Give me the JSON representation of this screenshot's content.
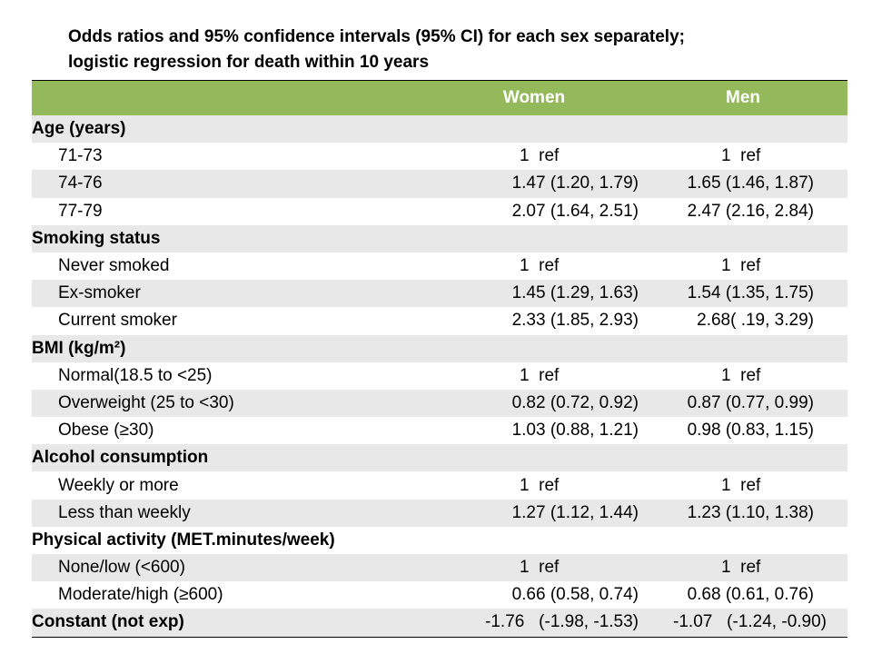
{
  "title_line1": "Odds ratios and 95% confidence intervals (95% CI) for each sex separately;",
  "title_line2": "logistic regression for death within 10 years",
  "headers": {
    "col0": "",
    "women": "Women",
    "men": "Men"
  },
  "rows": [
    {
      "label": "Age (years)",
      "type": "section",
      "women": "",
      "men": ""
    },
    {
      "label": "71-73",
      "type": "item",
      "women": "1  ref",
      "men": "1  ref",
      "ref": true
    },
    {
      "label": "74-76",
      "type": "item",
      "women": "1.47 (1.20, 1.79)",
      "men": "1.65 (1.46, 1.87)"
    },
    {
      "label": "77-79",
      "type": "item",
      "women": "2.07 (1.64, 2.51)",
      "men": "2.47 (2.16, 2.84)"
    },
    {
      "label": "Smoking status",
      "type": "section",
      "women": "",
      "men": ""
    },
    {
      "label": "Never smoked",
      "type": "item",
      "women": "1  ref",
      "men": "1  ref",
      "ref": true
    },
    {
      "label": "Ex-smoker",
      "type": "item",
      "women": "1.45 (1.29, 1.63)",
      "men": "1.54 (1.35, 1.75)"
    },
    {
      "label": "Current smoker",
      "type": "item",
      "women": "2.33 (1.85, 2.93)",
      "men": "2.68( .19, 3.29)"
    },
    {
      "label": "BMI  (kg/m²)",
      "type": "section",
      "women": "",
      "men": ""
    },
    {
      "label": "Normal(18.5 to <25)",
      "type": "item",
      "women": "1  ref",
      "men": "1  ref",
      "ref": true
    },
    {
      "label": "Overweight (25 to <30)",
      "type": "item",
      "women": "0.82 (0.72, 0.92)",
      "men": "0.87 (0.77, 0.99)"
    },
    {
      "label": "Obese (≥30)",
      "type": "item",
      "women": "1.03 (0.88, 1.21)",
      "men": "0.98 (0.83, 1.15)"
    },
    {
      "label": "Alcohol consumption",
      "type": "section",
      "women": "",
      "men": ""
    },
    {
      "label": "Weekly or more",
      "type": "item",
      "women": "1  ref",
      "men": "1  ref",
      "ref": true
    },
    {
      "label": "Less than weekly",
      "type": "item",
      "women": "1.27 (1.12, 1.44)",
      "men": "1.23 (1.10, 1.38)"
    },
    {
      "label": "Physical activity (MET.minutes/week)",
      "type": "section",
      "women": "",
      "men": ""
    },
    {
      "label": "None/low (<600)",
      "type": "item",
      "women": "1  ref",
      "men": "1  ref",
      "ref": true
    },
    {
      "label": "Moderate/high (≥600)",
      "type": "item",
      "women": "0.66 (0.58, 0.74)",
      "men": "0.68 (0.61, 0.76)"
    },
    {
      "label": "Constant (not exp)",
      "type": "last",
      "women": "-1.76   (-1.98, -1.53)",
      "men": "-1.07   (-1.24, -0.90)"
    }
  ],
  "colors": {
    "header_bg": "#93b95a",
    "stripe": "#e8e8e8"
  }
}
